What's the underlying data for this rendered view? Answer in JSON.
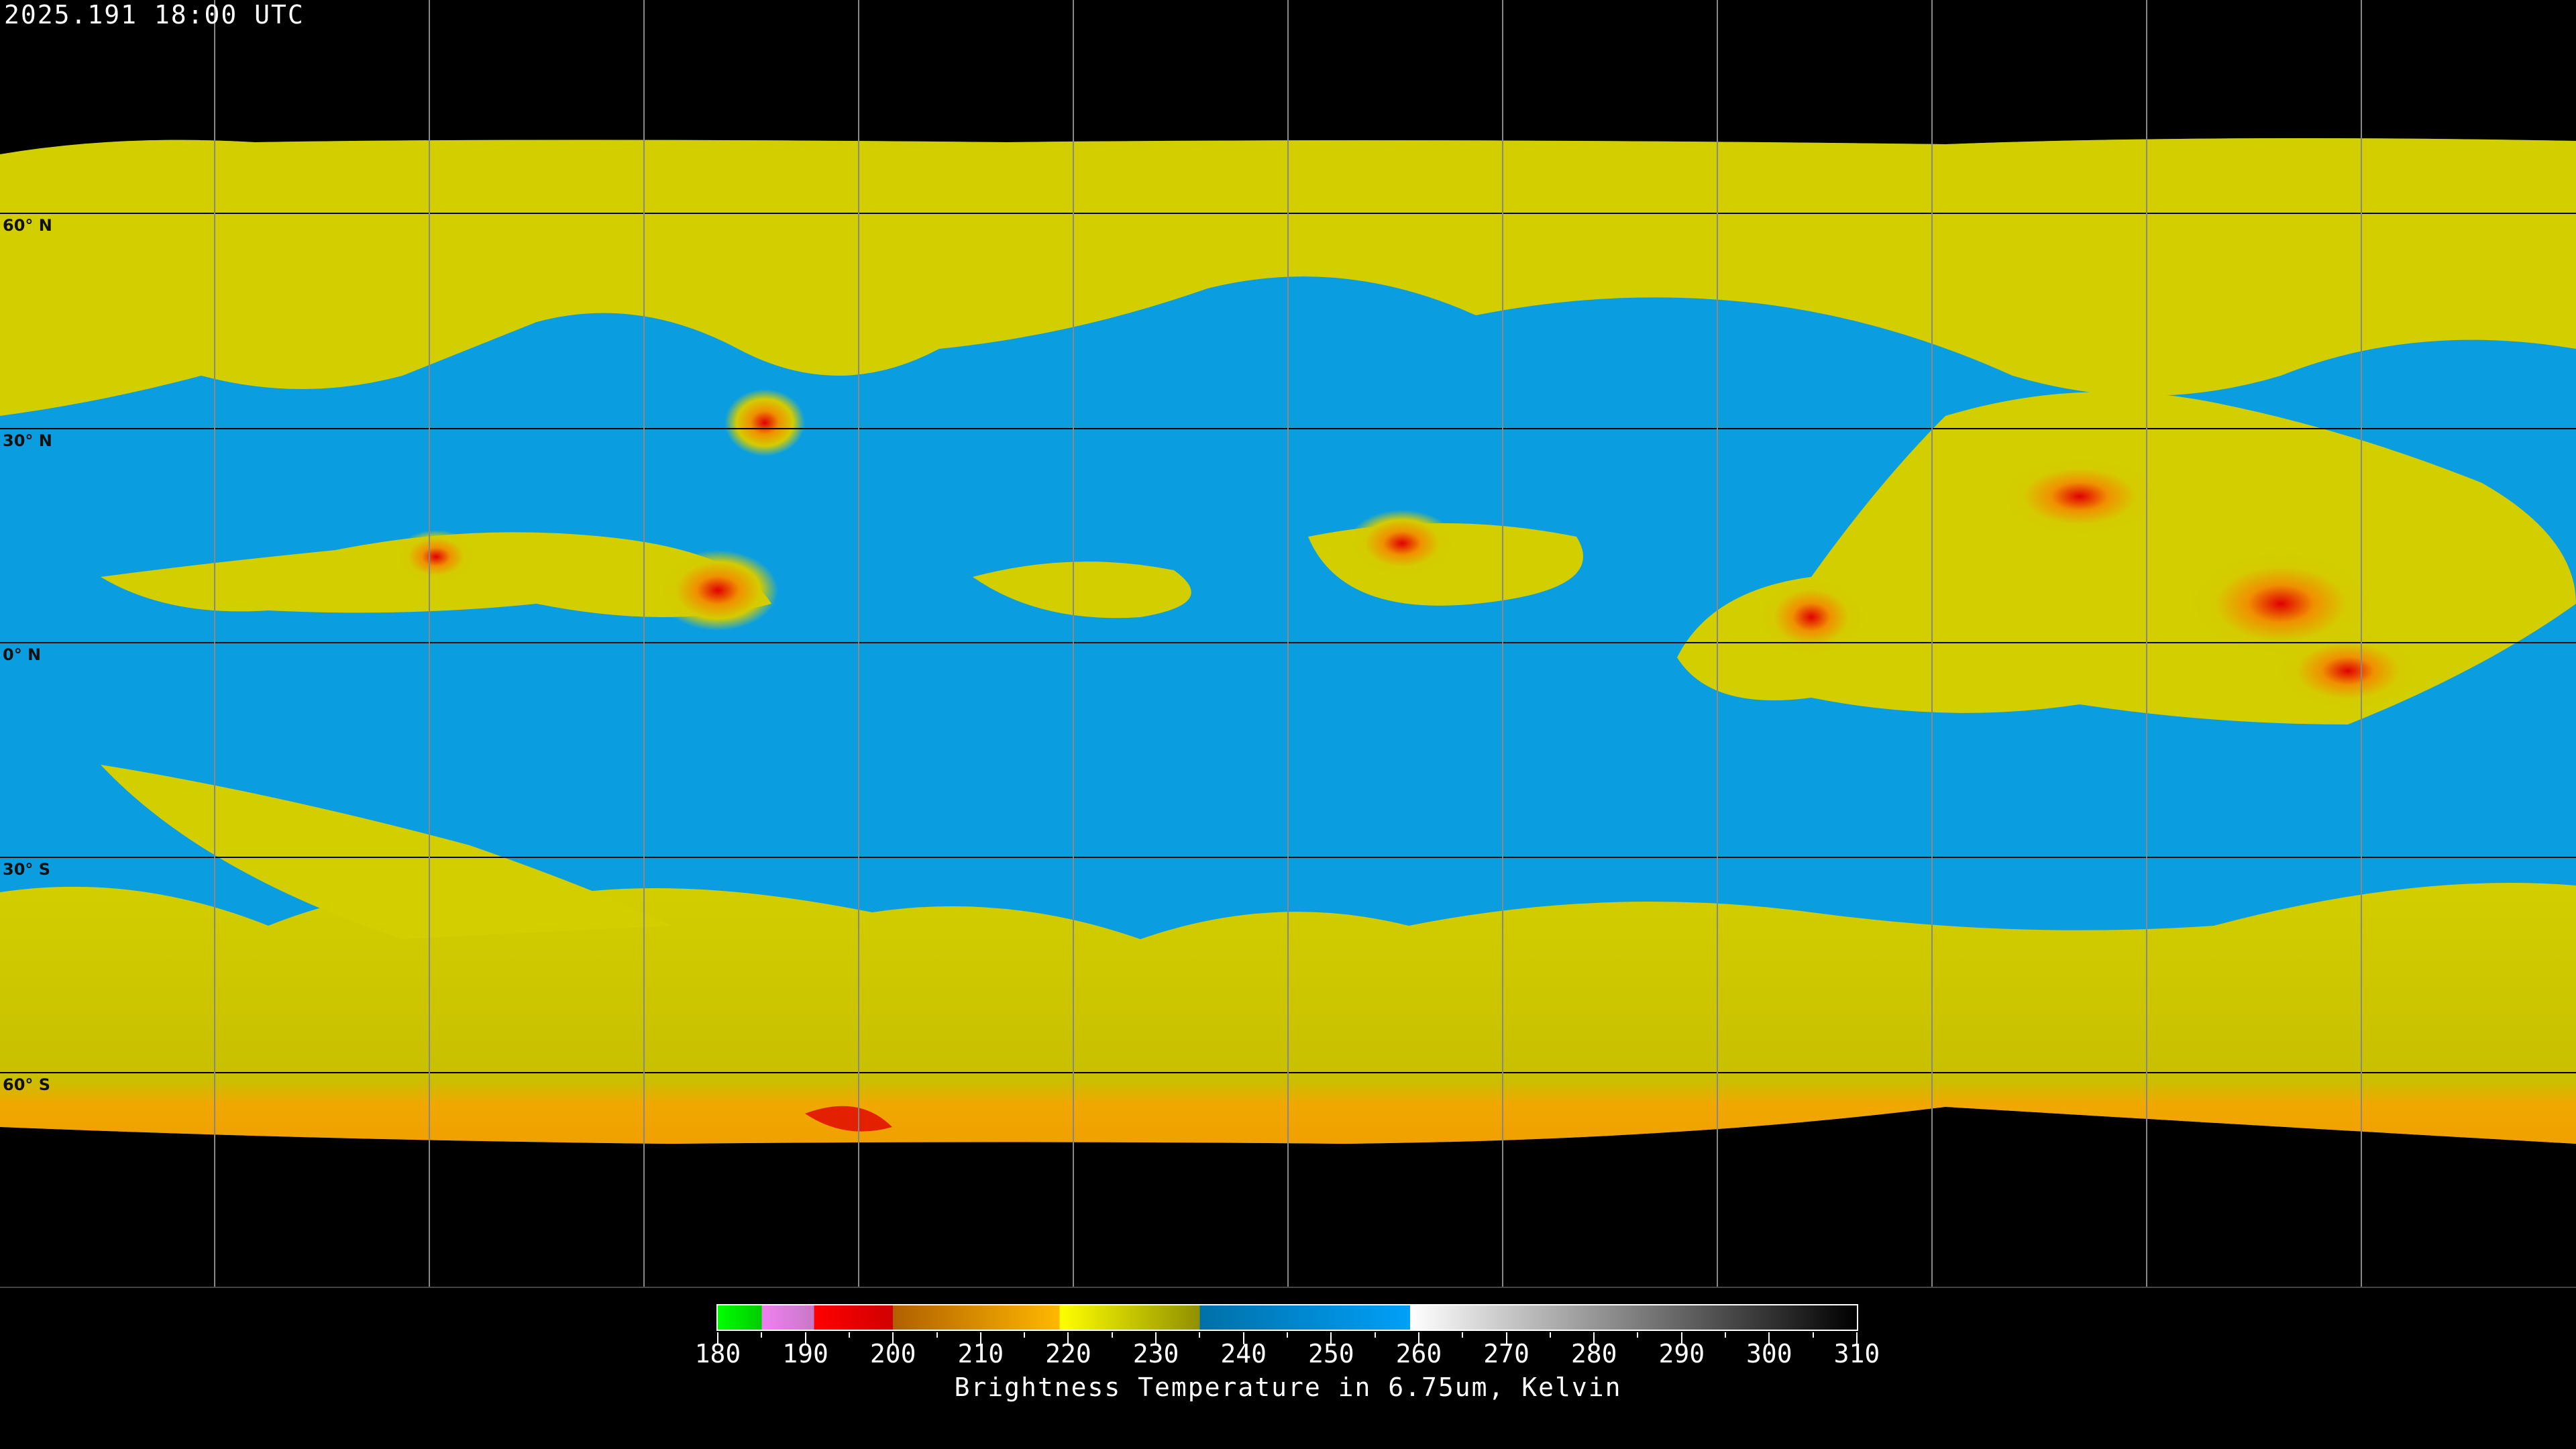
{
  "header": {
    "timestamp": "2025.191 18:00 UTC"
  },
  "map": {
    "projection": "equirectangular",
    "gridline_color": "#000000",
    "coastline_color_over_data": "#000000",
    "coastline_color_over_background": "#ffffff",
    "latitude_labels": [
      "60° N",
      "30° N",
      "0° N",
      "30° S",
      "60° S"
    ],
    "colors": {
      "clear_dry": "#0a9ee0",
      "moist": "#d2ce00",
      "cold_band": "#f0a800",
      "deep_convection": "#e00000",
      "no_data": "#000000"
    }
  },
  "colorbar": {
    "title": "Brightness Temperature in 6.75um, Kelvin",
    "min": 180,
    "max": 310,
    "tick_labels": [
      "180",
      "190",
      "200",
      "210",
      "220",
      "230",
      "240",
      "250",
      "260",
      "270",
      "280",
      "290",
      "300",
      "310"
    ],
    "segments": [
      {
        "from": 180,
        "to": 185,
        "colors": [
          "#00ff00",
          "#00cc00"
        ]
      },
      {
        "from": 185,
        "to": 191,
        "colors": [
          "#f080f0",
          "#c878c8"
        ]
      },
      {
        "from": 191,
        "to": 200,
        "colors": [
          "#ff0000",
          "#d00000"
        ]
      },
      {
        "from": 200,
        "to": 219,
        "colors": [
          "#b06000",
          "#ffb800"
        ]
      },
      {
        "from": 219,
        "to": 235,
        "colors": [
          "#ffff00",
          "#909000"
        ]
      },
      {
        "from": 235,
        "to": 259,
        "colors": [
          "#0070a8",
          "#00a0f8"
        ]
      },
      {
        "from": 259,
        "to": 310,
        "colors": [
          "#ffffff",
          "#000000"
        ]
      }
    ]
  }
}
